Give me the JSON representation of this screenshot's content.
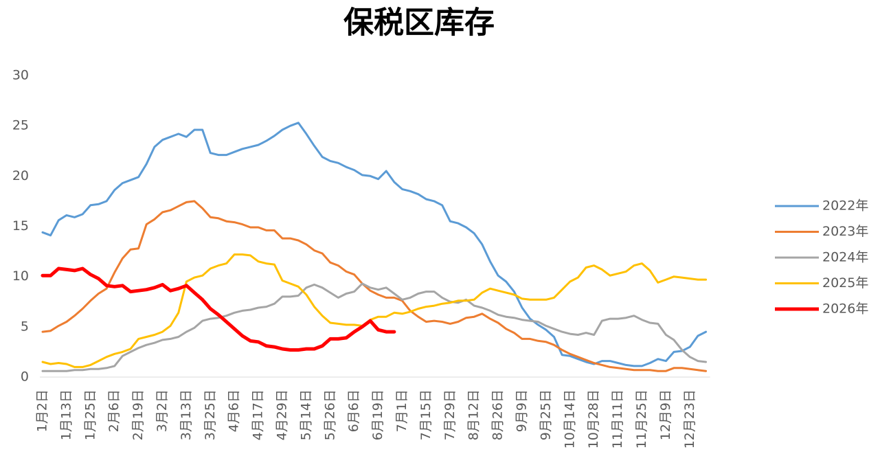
{
  "chart_data": {
    "type": "line",
    "title": "保税区库存",
    "categories": [
      "1月2日",
      null,
      null,
      "1月13日",
      null,
      null,
      "1月25日",
      null,
      null,
      "2月6日",
      null,
      null,
      "2月19日",
      null,
      null,
      "3月2日",
      null,
      null,
      "3月13日",
      null,
      null,
      "3月25日",
      null,
      null,
      "4月6日",
      null,
      null,
      "4月17日",
      null,
      null,
      "4月29日",
      null,
      null,
      "5月14日",
      null,
      null,
      "5月26日",
      null,
      null,
      "6月6日",
      null,
      null,
      "6月19日",
      null,
      null,
      "7月1日",
      null,
      null,
      "7月15日",
      null,
      null,
      "7月29日",
      null,
      null,
      "8月12日",
      null,
      null,
      "8月26日",
      null,
      null,
      "9月9日",
      null,
      null,
      "9月25日",
      null,
      null,
      "10月14日",
      null,
      null,
      "10月28日",
      null,
      null,
      "11月11日",
      null,
      null,
      "11月25日",
      null,
      null,
      "12月9日",
      null,
      null,
      "12月23日",
      null,
      null
    ],
    "series": [
      {
        "name": "2022年",
        "color": "#5b9bd5",
        "line_width": 3,
        "values": [
          14.4,
          14.1,
          15.6,
          16.1,
          15.9,
          16.2,
          17.1,
          17.2,
          17.5,
          18.6,
          19.3,
          19.6,
          19.9,
          21.2,
          22.9,
          23.6,
          23.9,
          24.2,
          23.9,
          24.6,
          24.6,
          22.3,
          22.1,
          22.1,
          22.4,
          22.7,
          22.9,
          23.1,
          23.5,
          24.0,
          24.6,
          25.0,
          25.3,
          24.2,
          23.0,
          21.9,
          21.5,
          21.3,
          20.9,
          20.6,
          20.1,
          20.0,
          19.7,
          20.5,
          19.4,
          18.7,
          18.5,
          18.2,
          17.7,
          17.5,
          17.1,
          15.5,
          15.3,
          14.9,
          14.3,
          13.2,
          11.5,
          10.1,
          9.5,
          8.5,
          6.9,
          5.8,
          5.2,
          4.7,
          4.0,
          2.2,
          2.1,
          1.8,
          1.5,
          1.3,
          1.6,
          1.6,
          1.4,
          1.2,
          1.1,
          1.1,
          1.4,
          1.8,
          1.6,
          2.5,
          2.6,
          3.0,
          4.1,
          4.5
        ]
      },
      {
        "name": "2023年",
        "color": "#ed7d31",
        "line_width": 3,
        "values": [
          4.5,
          4.6,
          5.1,
          5.5,
          6.1,
          6.8,
          7.6,
          8.3,
          8.8,
          10.4,
          11.8,
          12.7,
          12.8,
          15.2,
          15.7,
          16.4,
          16.6,
          17.0,
          17.4,
          17.5,
          16.8,
          15.9,
          15.8,
          15.5,
          15.4,
          15.2,
          14.9,
          14.9,
          14.6,
          14.6,
          13.8,
          13.8,
          13.6,
          13.2,
          12.6,
          12.3,
          11.4,
          11.1,
          10.5,
          10.2,
          9.3,
          8.6,
          8.2,
          7.9,
          7.9,
          7.6,
          6.6,
          6.0,
          5.5,
          5.6,
          5.5,
          5.3,
          5.5,
          5.9,
          6.0,
          6.3,
          5.8,
          5.4,
          4.8,
          4.4,
          3.8,
          3.8,
          3.6,
          3.5,
          3.2,
          2.7,
          2.3,
          2.0,
          1.7,
          1.4,
          1.2,
          1.0,
          0.9,
          0.8,
          0.7,
          0.7,
          0.7,
          0.6,
          0.6,
          0.9,
          0.9,
          0.8,
          0.7,
          0.6
        ]
      },
      {
        "name": "2024年",
        "color": "#a5a5a5",
        "line_width": 3,
        "values": [
          0.6,
          0.6,
          0.6,
          0.6,
          0.7,
          0.7,
          0.8,
          0.8,
          0.9,
          1.1,
          2.1,
          2.5,
          2.9,
          3.2,
          3.4,
          3.7,
          3.8,
          4.0,
          4.5,
          4.9,
          5.6,
          5.8,
          5.9,
          6.1,
          6.4,
          6.6,
          6.7,
          6.9,
          7.0,
          7.3,
          8.0,
          8.0,
          8.1,
          8.9,
          9.2,
          8.9,
          8.4,
          7.9,
          8.3,
          8.5,
          9.3,
          8.9,
          8.7,
          8.9,
          8.3,
          7.7,
          7.9,
          8.3,
          8.5,
          8.5,
          7.9,
          7.5,
          7.4,
          7.7,
          7.1,
          6.9,
          6.6,
          6.2,
          6.0,
          5.9,
          5.7,
          5.6,
          5.5,
          5.1,
          4.8,
          4.5,
          4.3,
          4.2,
          4.4,
          4.2,
          5.6,
          5.8,
          5.8,
          5.9,
          6.1,
          5.7,
          5.4,
          5.3,
          4.2,
          3.7,
          2.7,
          2.0,
          1.6,
          1.5
        ]
      },
      {
        "name": "2025年",
        "color": "#ffc000",
        "line_width": 3,
        "values": [
          1.5,
          1.3,
          1.4,
          1.3,
          1.0,
          1.0,
          1.2,
          1.6,
          2.0,
          2.3,
          2.5,
          2.8,
          3.8,
          4.0,
          4.2,
          4.5,
          5.1,
          6.4,
          9.5,
          9.9,
          10.1,
          10.8,
          11.1,
          11.3,
          12.2,
          12.2,
          12.1,
          11.5,
          11.3,
          11.2,
          9.6,
          9.3,
          9.0,
          8.2,
          7.0,
          6.1,
          5.4,
          5.3,
          5.2,
          5.2,
          5.1,
          5.7,
          6.0,
          6.0,
          6.4,
          6.3,
          6.5,
          6.8,
          7.0,
          7.1,
          7.3,
          7.4,
          7.6,
          7.6,
          7.7,
          8.4,
          8.8,
          8.6,
          8.4,
          8.2,
          7.8,
          7.7,
          7.7,
          7.7,
          7.9,
          8.7,
          9.5,
          9.9,
          10.9,
          11.1,
          10.7,
          10.1,
          10.3,
          10.5,
          11.1,
          11.3,
          10.6,
          9.4,
          9.7,
          10.0,
          9.9,
          9.8,
          9.7,
          9.7
        ]
      },
      {
        "name": "2026年",
        "color": "#ff0000",
        "line_width": 5,
        "values": [
          10.1,
          10.1,
          10.8,
          10.7,
          10.6,
          10.8,
          10.2,
          9.8,
          9.1,
          9.0,
          9.1,
          8.5,
          8.6,
          8.7,
          8.9,
          9.2,
          8.6,
          8.8,
          9.1,
          8.4,
          7.7,
          6.8,
          6.2,
          5.5,
          4.8,
          4.1,
          3.6,
          3.5,
          3.1,
          3.0,
          2.8,
          2.7,
          2.7,
          2.8,
          2.8,
          3.1,
          3.8,
          3.8,
          3.9,
          4.5,
          5.0,
          5.6,
          4.7,
          4.5,
          4.5,
          null,
          null,
          null,
          null,
          null,
          null,
          null,
          null,
          null,
          null,
          null,
          null,
          null,
          null,
          null,
          null,
          null,
          null,
          null,
          null,
          null,
          null,
          null,
          null,
          null,
          null,
          null,
          null,
          null,
          null,
          null,
          null,
          null,
          null,
          null,
          null,
          null,
          null,
          null
        ]
      }
    ],
    "ylim": [
      0,
      30
    ],
    "yticks": [
      0,
      5,
      10,
      15,
      20,
      25,
      30
    ],
    "grid": false,
    "legend": "right"
  }
}
